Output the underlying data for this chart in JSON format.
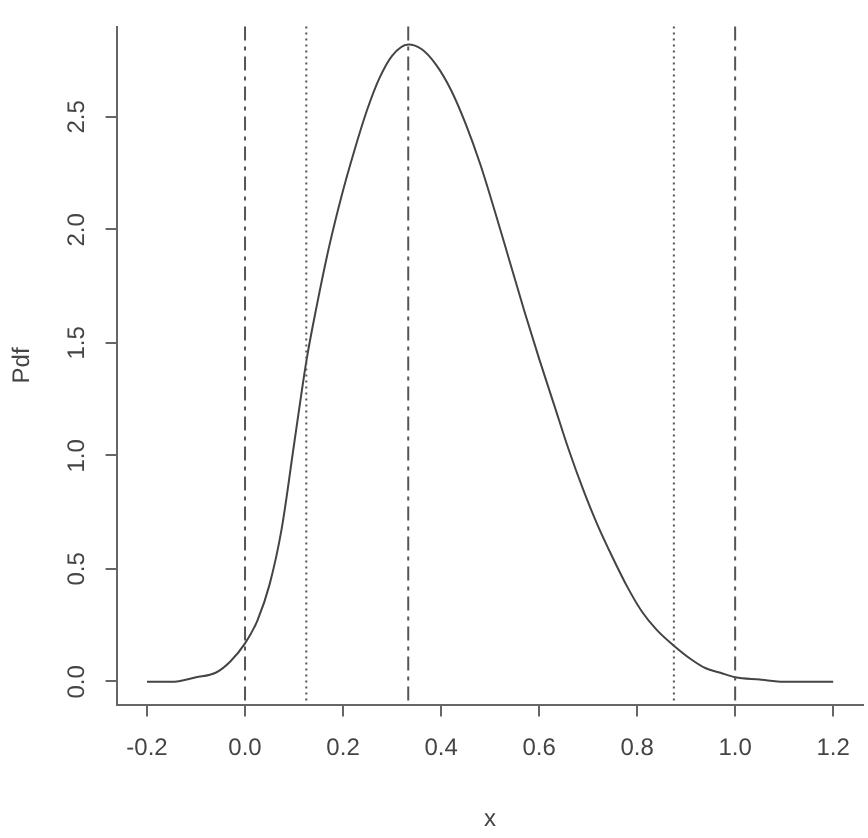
{
  "chart_data": {
    "type": "line",
    "xlabel": "x",
    "ylabel": "Pdf",
    "x": [
      -0.2,
      -0.15,
      -0.1,
      -0.06,
      -0.03,
      0,
      0.025,
      0.05,
      0.075,
      0.1,
      0.126,
      0.146,
      0.171,
      0.197,
      0.223,
      0.249,
      0.274,
      0.3,
      0.333,
      0.36,
      0.39,
      0.42,
      0.45,
      0.48,
      0.51,
      0.54,
      0.57,
      0.6,
      0.63,
      0.66,
      0.69,
      0.72,
      0.75,
      0.78,
      0.81,
      0.84,
      0.875,
      0.91,
      0.94,
      0.97,
      1.0,
      1.05,
      1.1,
      1.2
    ],
    "series": [
      {
        "color": "#444444",
        "values": [
          0,
          0,
          0.02,
          0.04,
          0.09,
          0.17,
          0.27,
          0.43,
          0.68,
          1.05,
          1.43,
          1.66,
          1.92,
          2.15,
          2.35,
          2.53,
          2.67,
          2.77,
          2.82,
          2.8,
          2.73,
          2.62,
          2.47,
          2.29,
          2.08,
          1.86,
          1.64,
          1.43,
          1.23,
          1.03,
          0.85,
          0.69,
          0.55,
          0.42,
          0.31,
          0.23,
          0.16,
          0.1,
          0.06,
          0.04,
          0.02,
          0.01,
          0,
          0
        ]
      }
    ],
    "xlim": [
      -0.26,
      1.26
    ],
    "ylim": [
      -0.1,
      2.9
    ],
    "xticks": [
      -0.2,
      {
        "value": 0,
        "label": "0.0"
      },
      0.2,
      0.4,
      0.6,
      0.8,
      {
        "value": 1,
        "label": "1.0"
      },
      1.2
    ],
    "yticks": [
      {
        "value": 0,
        "label": "0.0"
      },
      0.5,
      {
        "value": 1,
        "label": "1.0"
      },
      1.5,
      {
        "value": 2,
        "label": "2.0"
      },
      2.5
    ],
    "ref_lines": [
      {
        "axis": "x",
        "value": 0,
        "line_style": "dashed",
        "color": "#555555"
      },
      {
        "axis": "x",
        "value": 0.125,
        "line_style": "dotted",
        "color": "#555555"
      },
      {
        "axis": "x",
        "value": 0.333,
        "line_style": "dashed",
        "color": "#555555"
      },
      {
        "axis": "x",
        "value": 0.875,
        "line_style": "dotted",
        "color": "#555555"
      },
      {
        "axis": "x",
        "value": 1.0,
        "line_style": "dashed",
        "color": "#555555"
      }
    ],
    "marker": "none",
    "line_style": "solid"
  }
}
